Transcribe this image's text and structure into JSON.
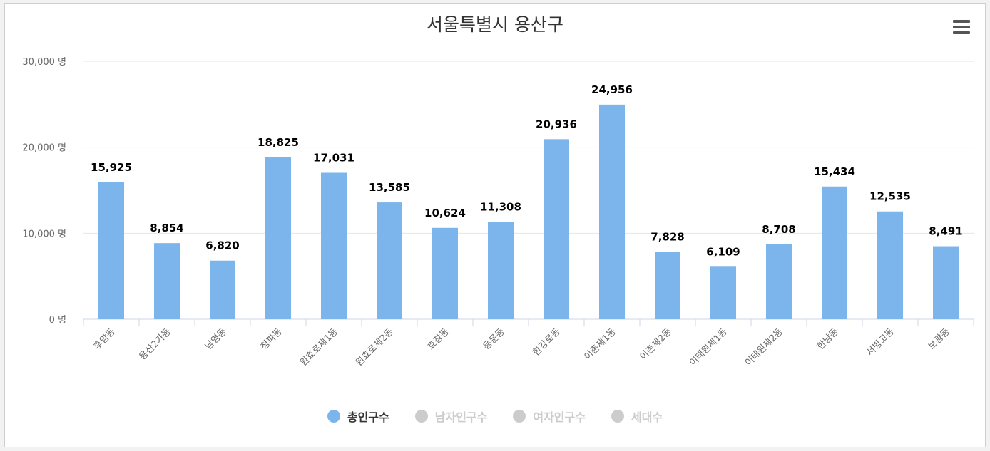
{
  "chart_data": {
    "type": "bar",
    "title": "서울특별시 용산구",
    "categories": [
      "후암동",
      "용산2가동",
      "남영동",
      "청파동",
      "원효로제1동",
      "원효로제2동",
      "효창동",
      "용문동",
      "한강로동",
      "이촌제1동",
      "이촌제2동",
      "이태원제1동",
      "이태원제2동",
      "한남동",
      "서빙고동",
      "보광동"
    ],
    "series": [
      {
        "name": "총인구수",
        "values": [
          15925,
          8854,
          6820,
          18825,
          17031,
          13585,
          10624,
          11308,
          20936,
          24956,
          7828,
          6109,
          8708,
          15434,
          12535,
          8491
        ],
        "visible": true
      }
    ],
    "data_labels": [
      "15,925",
      "8,854",
      "6,820",
      "18,825",
      "17,031",
      "13,585",
      "10,624",
      "11,308",
      "20,936",
      "24,956",
      "7,828",
      "6,109",
      "8,708",
      "15,434",
      "12,535",
      "8,491"
    ],
    "ylim": [
      0,
      30000
    ],
    "yticks": [
      0,
      10000,
      20000,
      30000
    ],
    "ytick_labels": [
      "0 명",
      "10,000 명",
      "20,000 명",
      "30,000 명"
    ],
    "xlabel": "",
    "ylabel": "",
    "grid": true,
    "legend_position": "bottom"
  },
  "legend": [
    {
      "label": "총인구수",
      "active": true
    },
    {
      "label": "남자인구수",
      "active": false
    },
    {
      "label": "여자인구수",
      "active": false
    },
    {
      "label": "세대수",
      "active": false
    }
  ],
  "colors": {
    "bar": "#7cb5ec",
    "grid": "#e6e6e6",
    "axis": "#ccd6eb",
    "inactive": "#cccccc",
    "text": "#333333",
    "tick": "#666666"
  },
  "menu_icon": "hamburger-menu-icon"
}
